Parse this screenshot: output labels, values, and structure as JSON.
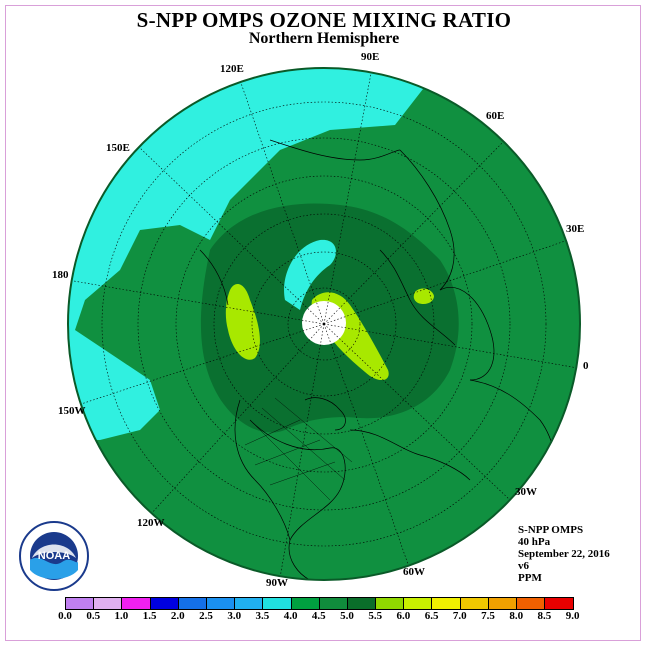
{
  "title": "S-NPP OMPS OZONE MIXING RATIO",
  "subtitle": "Northern Hemisphere",
  "longitude_labels": [
    "90E",
    "60E",
    "30E",
    "0",
    "30W",
    "60W",
    "90W",
    "120W",
    "150W",
    "180",
    "150E",
    "120E"
  ],
  "info": {
    "instrument": "S-NPP OMPS",
    "pressure": "40 hPa",
    "date": "September 22, 2016",
    "version": "v6",
    "units": "PPM"
  },
  "logo": {
    "text": "NOAA",
    "name": "noaa-logo"
  },
  "colorbar": {
    "ticks": [
      "0.0",
      "0.5",
      "1.0",
      "1.5",
      "2.0",
      "2.5",
      "3.0",
      "3.5",
      "4.0",
      "4.5",
      "5.0",
      "5.5",
      "6.0",
      "6.5",
      "7.0",
      "7.5",
      "8.0",
      "8.5",
      "9.0"
    ],
    "colors": [
      "#c080f0",
      "#e0b0f0",
      "#f020f0",
      "#0000e0",
      "#1470e8",
      "#1a90f0",
      "#20b0f0",
      "#20e0e0",
      "#00a040",
      "#108c3c",
      "#0a6e2a",
      "#90d800",
      "#c8f000",
      "#f0f000",
      "#f0c800",
      "#f0a000",
      "#f06000",
      "#e80000",
      "#8c5030"
    ]
  },
  "map_colors": {
    "background_land": "#109040",
    "low_region": "#30f0e0",
    "mid_region": "#0a7030",
    "high_region": "#a8e800",
    "pole_gap": "#ffffff"
  }
}
